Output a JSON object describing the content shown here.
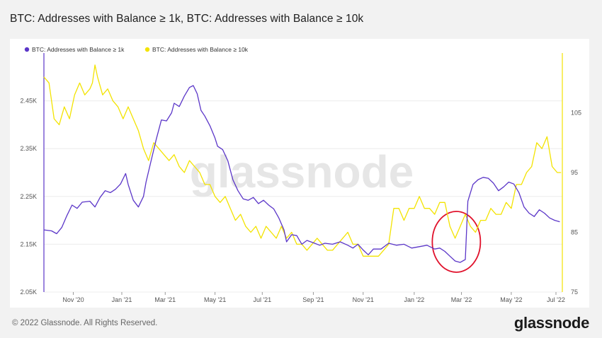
{
  "page": {
    "title": "BTC: Addresses with Balance ≥ 1k, BTC: Addresses with Balance ≥ 10k",
    "copyright": "© 2022 Glassnode. All Rights Reserved.",
    "logo": "glassnode",
    "watermark": "glassnode"
  },
  "chart_data": {
    "type": "line",
    "x_ticks": [
      "Nov '20",
      "Jan '21",
      "Mar '21",
      "May '21",
      "Jul '21",
      "Sep '21",
      "Nov '21",
      "Jan '22",
      "Mar '22",
      "May '22",
      "Jul '22"
    ],
    "y_left": {
      "ticks": [
        "2.05K",
        "2.15K",
        "2.25K",
        "2.35K",
        "2.45K"
      ],
      "range": [
        2050,
        2550
      ]
    },
    "y_right": {
      "ticks": [
        "75",
        "85",
        "95",
        "105"
      ],
      "range": [
        75,
        115
      ]
    },
    "x_range": [
      0,
      20.3
    ],
    "grid": "horizontal",
    "legend_position": "top-left",
    "annotation": {
      "type": "circle",
      "color": "#e0112b",
      "at_x": 16.15
    },
    "series": [
      {
        "name": "BTC: Addresses with Balance ≥ 1k",
        "color": "#5b36c8",
        "axis": "left",
        "points": [
          [
            0,
            2180
          ],
          [
            0.3,
            2178
          ],
          [
            0.5,
            2172
          ],
          [
            0.7,
            2185
          ],
          [
            0.9,
            2210
          ],
          [
            1.1,
            2232
          ],
          [
            1.3,
            2225
          ],
          [
            1.5,
            2238
          ],
          [
            1.8,
            2240
          ],
          [
            2.0,
            2228
          ],
          [
            2.2,
            2248
          ],
          [
            2.4,
            2262
          ],
          [
            2.6,
            2258
          ],
          [
            2.8,
            2265
          ],
          [
            3.0,
            2276
          ],
          [
            3.2,
            2298
          ],
          [
            3.3,
            2275
          ],
          [
            3.5,
            2242
          ],
          [
            3.7,
            2228
          ],
          [
            3.9,
            2250
          ],
          [
            4.0,
            2280
          ],
          [
            4.2,
            2325
          ],
          [
            4.4,
            2370
          ],
          [
            4.6,
            2410
          ],
          [
            4.8,
            2408
          ],
          [
            5.0,
            2425
          ],
          [
            5.1,
            2445
          ],
          [
            5.3,
            2438
          ],
          [
            5.5,
            2460
          ],
          [
            5.7,
            2478
          ],
          [
            5.85,
            2482
          ],
          [
            6.0,
            2465
          ],
          [
            6.15,
            2430
          ],
          [
            6.3,
            2418
          ],
          [
            6.5,
            2398
          ],
          [
            6.7,
            2372
          ],
          [
            6.8,
            2355
          ],
          [
            7.0,
            2348
          ],
          [
            7.2,
            2325
          ],
          [
            7.4,
            2285
          ],
          [
            7.6,
            2262
          ],
          [
            7.8,
            2245
          ],
          [
            8.0,
            2242
          ],
          [
            8.2,
            2248
          ],
          [
            8.4,
            2235
          ],
          [
            8.6,
            2242
          ],
          [
            8.8,
            2232
          ],
          [
            9.0,
            2224
          ],
          [
            9.2,
            2205
          ],
          [
            9.4,
            2180
          ],
          [
            9.5,
            2155
          ],
          [
            9.7,
            2170
          ],
          [
            9.9,
            2168
          ],
          [
            10.1,
            2150
          ],
          [
            10.3,
            2158
          ],
          [
            10.6,
            2152
          ],
          [
            10.8,
            2148
          ],
          [
            11.0,
            2152
          ],
          [
            11.3,
            2150
          ],
          [
            11.6,
            2155
          ],
          [
            11.9,
            2148
          ],
          [
            12.1,
            2142
          ],
          [
            12.3,
            2150
          ],
          [
            12.5,
            2138
          ],
          [
            12.7,
            2128
          ],
          [
            12.9,
            2140
          ],
          [
            13.2,
            2140
          ],
          [
            13.5,
            2152
          ],
          [
            13.8,
            2148
          ],
          [
            14.1,
            2150
          ],
          [
            14.4,
            2142
          ],
          [
            14.7,
            2145
          ],
          [
            15.0,
            2148
          ],
          [
            15.3,
            2140
          ],
          [
            15.5,
            2142
          ],
          [
            15.7,
            2135
          ],
          [
            15.9,
            2125
          ],
          [
            16.1,
            2115
          ],
          [
            16.3,
            2112
          ],
          [
            16.5,
            2118
          ],
          [
            16.6,
            2240
          ],
          [
            16.8,
            2275
          ],
          [
            17.0,
            2285
          ],
          [
            17.2,
            2290
          ],
          [
            17.4,
            2288
          ],
          [
            17.6,
            2278
          ],
          [
            17.8,
            2262
          ],
          [
            18.0,
            2270
          ],
          [
            18.2,
            2280
          ],
          [
            18.4,
            2276
          ],
          [
            18.6,
            2258
          ],
          [
            18.8,
            2228
          ],
          [
            19.0,
            2215
          ],
          [
            19.2,
            2208
          ],
          [
            19.4,
            2222
          ],
          [
            19.6,
            2215
          ],
          [
            19.8,
            2205
          ],
          [
            20.0,
            2200
          ],
          [
            20.2,
            2197
          ]
        ]
      },
      {
        "name": "BTC: Addresses with Balance ≥ 10k",
        "color": "#f3e300",
        "axis": "right",
        "points": [
          [
            0,
            111
          ],
          [
            0.2,
            110
          ],
          [
            0.4,
            104
          ],
          [
            0.6,
            103
          ],
          [
            0.8,
            106
          ],
          [
            1.0,
            104
          ],
          [
            1.2,
            108
          ],
          [
            1.4,
            110
          ],
          [
            1.6,
            108
          ],
          [
            1.8,
            109
          ],
          [
            1.9,
            110
          ],
          [
            2.0,
            113
          ],
          [
            2.1,
            111
          ],
          [
            2.3,
            108
          ],
          [
            2.5,
            109
          ],
          [
            2.7,
            107
          ],
          [
            2.9,
            106
          ],
          [
            3.1,
            104
          ],
          [
            3.3,
            106
          ],
          [
            3.5,
            104
          ],
          [
            3.7,
            102
          ],
          [
            3.9,
            99
          ],
          [
            4.1,
            97
          ],
          [
            4.3,
            100
          ],
          [
            4.5,
            99
          ],
          [
            4.7,
            98
          ],
          [
            4.9,
            97
          ],
          [
            5.1,
            98
          ],
          [
            5.3,
            96
          ],
          [
            5.5,
            95
          ],
          [
            5.7,
            97
          ],
          [
            5.9,
            96
          ],
          [
            6.1,
            95
          ],
          [
            6.3,
            93
          ],
          [
            6.5,
            93
          ],
          [
            6.7,
            91
          ],
          [
            6.9,
            90
          ],
          [
            7.1,
            91
          ],
          [
            7.3,
            89
          ],
          [
            7.5,
            87
          ],
          [
            7.7,
            88
          ],
          [
            7.9,
            86
          ],
          [
            8.1,
            85
          ],
          [
            8.3,
            86
          ],
          [
            8.5,
            84
          ],
          [
            8.7,
            86
          ],
          [
            8.9,
            85
          ],
          [
            9.1,
            84
          ],
          [
            9.3,
            86
          ],
          [
            9.5,
            84
          ],
          [
            9.7,
            85
          ],
          [
            9.9,
            83
          ],
          [
            10.1,
            83
          ],
          [
            10.3,
            82
          ],
          [
            10.5,
            83
          ],
          [
            10.7,
            84
          ],
          [
            10.9,
            83
          ],
          [
            11.1,
            82
          ],
          [
            11.3,
            82
          ],
          [
            11.5,
            83
          ],
          [
            11.7,
            84
          ],
          [
            11.9,
            85
          ],
          [
            12.1,
            83
          ],
          [
            12.3,
            83
          ],
          [
            12.5,
            81
          ],
          [
            12.7,
            81
          ],
          [
            12.9,
            81
          ],
          [
            13.1,
            81
          ],
          [
            13.3,
            82
          ],
          [
            13.5,
            83
          ],
          [
            13.7,
            89
          ],
          [
            13.9,
            89
          ],
          [
            14.1,
            87
          ],
          [
            14.3,
            89
          ],
          [
            14.5,
            89
          ],
          [
            14.7,
            91
          ],
          [
            14.9,
            89
          ],
          [
            15.1,
            89
          ],
          [
            15.3,
            88
          ],
          [
            15.5,
            90
          ],
          [
            15.7,
            90
          ],
          [
            15.9,
            86
          ],
          [
            16.1,
            84
          ],
          [
            16.3,
            86
          ],
          [
            16.5,
            88
          ],
          [
            16.7,
            86
          ],
          [
            16.9,
            85
          ],
          [
            17.1,
            87
          ],
          [
            17.3,
            87
          ],
          [
            17.5,
            89
          ],
          [
            17.7,
            88
          ],
          [
            17.9,
            88
          ],
          [
            18.1,
            90
          ],
          [
            18.3,
            89
          ],
          [
            18.5,
            93
          ],
          [
            18.7,
            93
          ],
          [
            18.9,
            95
          ],
          [
            19.1,
            96
          ],
          [
            19.3,
            100
          ],
          [
            19.5,
            99
          ],
          [
            19.7,
            101
          ],
          [
            19.9,
            96
          ],
          [
            20.1,
            95
          ],
          [
            20.25,
            95
          ]
        ]
      }
    ]
  }
}
